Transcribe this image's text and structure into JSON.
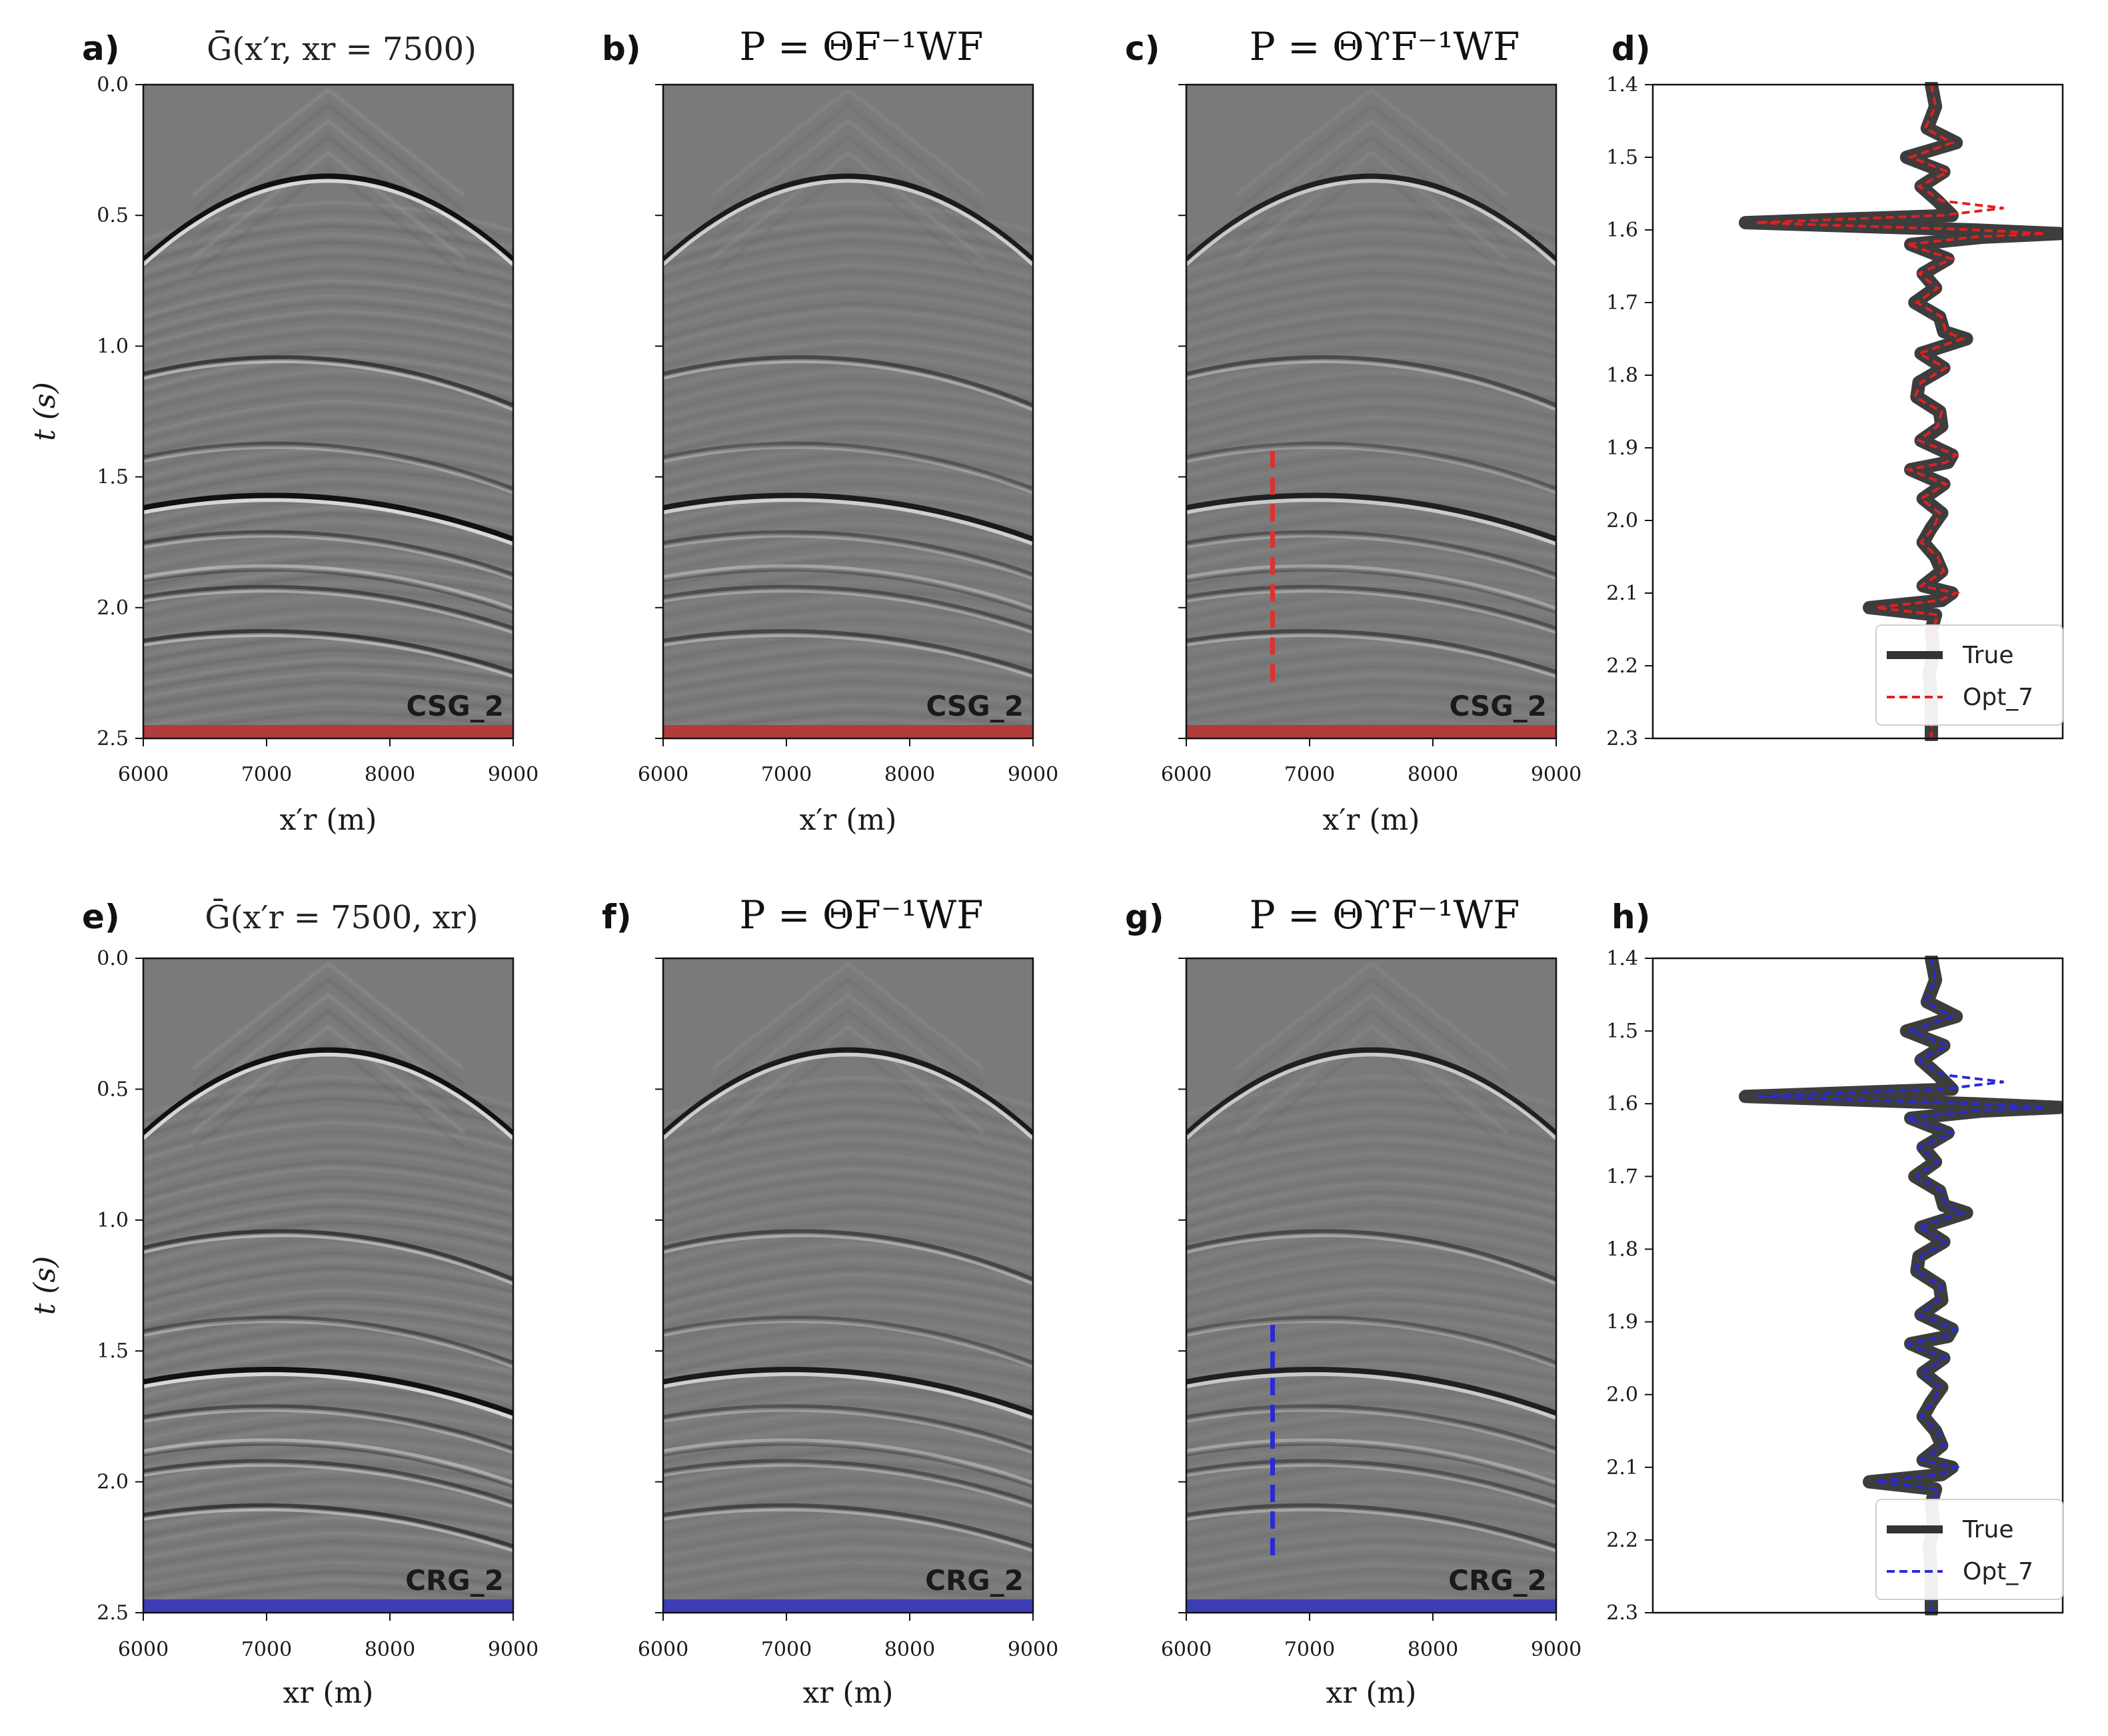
{
  "chart_data": [
    {
      "panel": "a",
      "type": "heatmap",
      "label": "a)",
      "title": "Ḡ(x′r, xr = 7500)",
      "xlabel": "x′r (m)",
      "ylabel": "t (s)",
      "badge": "CSG_2",
      "strip_color": "#b23b3b",
      "x_ticks": [
        "6000",
        "7000",
        "8000",
        "9000"
      ],
      "y_ticks": [
        "0.0",
        "0.5",
        "1.0",
        "1.5",
        "2.0",
        "2.5"
      ],
      "xlim": [
        6000,
        9000
      ],
      "ylim": [
        0.0,
        2.5
      ],
      "amplitude": 1.0
    },
    {
      "panel": "b",
      "type": "heatmap",
      "label": "b)",
      "title": "P = ΘF⁻¹WF",
      "xlabel": "x′r (m)",
      "ylabel": "",
      "badge": "CSG_2",
      "strip_color": "#b23b3b",
      "x_ticks": [
        "6000",
        "7000",
        "8000",
        "9000"
      ],
      "xlim": [
        6000,
        9000
      ],
      "ylim": [
        0.0,
        2.5
      ],
      "amplitude": 0.75
    },
    {
      "panel": "c",
      "type": "heatmap",
      "label": "c)",
      "title": "P = ΘϒF⁻¹WF",
      "xlabel": "x′r (m)",
      "ylabel": "",
      "badge": "CSG_2",
      "strip_color": "#b23b3b",
      "x_ticks": [
        "6000",
        "7000",
        "8000",
        "9000"
      ],
      "xlim": [
        6000,
        9000
      ],
      "ylim": [
        0.0,
        2.5
      ],
      "amplitude": 0.7,
      "marker": {
        "x": 6700,
        "t_start": 1.4,
        "t_end": 2.3,
        "color": "#e03030"
      }
    },
    {
      "panel": "d",
      "type": "line",
      "label": "d)",
      "y_ticks": [
        "1.4",
        "1.5",
        "1.6",
        "1.7",
        "1.8",
        "1.9",
        "2.0",
        "2.1",
        "2.2",
        "2.3"
      ],
      "ylim": [
        1.4,
        2.3
      ],
      "legend": [
        "True",
        "Opt_7"
      ],
      "legend_position": "bottom-right",
      "series_colors": [
        "#333333",
        "#e02020"
      ]
    },
    {
      "panel": "e",
      "type": "heatmap",
      "label": "e)",
      "title": "Ḡ(x′r = 7500, xr)",
      "xlabel": "xr (m)",
      "ylabel": "t (s)",
      "badge": "CRG_2",
      "strip_color": "#3d3db5",
      "x_ticks": [
        "6000",
        "7000",
        "8000",
        "9000"
      ],
      "y_ticks": [
        "0.0",
        "0.5",
        "1.0",
        "1.5",
        "2.0",
        "2.5"
      ],
      "xlim": [
        6000,
        9000
      ],
      "ylim": [
        0.0,
        2.5
      ],
      "amplitude": 1.0
    },
    {
      "panel": "f",
      "type": "heatmap",
      "label": "f)",
      "title": "P = ΘF⁻¹WF",
      "xlabel": "xr (m)",
      "ylabel": "",
      "badge": "CRG_2",
      "strip_color": "#3d3db5",
      "x_ticks": [
        "6000",
        "7000",
        "8000",
        "9000"
      ],
      "xlim": [
        6000,
        9000
      ],
      "ylim": [
        0.0,
        2.5
      ],
      "amplitude": 0.75
    },
    {
      "panel": "g",
      "type": "heatmap",
      "label": "g)",
      "title": "P = ΘϒF⁻¹WF",
      "xlabel": "xr (m)",
      "ylabel": "",
      "badge": "CRG_2",
      "strip_color": "#3d3db5",
      "x_ticks": [
        "6000",
        "7000",
        "8000",
        "9000"
      ],
      "xlim": [
        6000,
        9000
      ],
      "ylim": [
        0.0,
        2.5
      ],
      "amplitude": 0.7,
      "marker": {
        "x": 6700,
        "t_start": 1.4,
        "t_end": 2.3,
        "color": "#2a2ad6"
      }
    },
    {
      "panel": "h",
      "type": "line",
      "label": "h)",
      "y_ticks": [
        "1.4",
        "1.5",
        "1.6",
        "1.7",
        "1.8",
        "1.9",
        "2.0",
        "2.1",
        "2.2",
        "2.3"
      ],
      "ylim": [
        1.4,
        2.3
      ],
      "legend": [
        "True",
        "Opt_7"
      ],
      "legend_position": "bottom-right",
      "series_colors": [
        "#333333",
        "#2a2ad6"
      ]
    }
  ],
  "reflector_events": [
    {
      "t0": 0.35,
      "curv": 1.6,
      "polarity": -1,
      "strength": 1.0
    },
    {
      "t0": 1.05,
      "curv": 0.55,
      "polarity": -1,
      "strength": 0.45
    },
    {
      "t0": 1.38,
      "curv": 0.45,
      "polarity": -1,
      "strength": 0.25
    },
    {
      "t0": 1.58,
      "curv": 0.4,
      "polarity": -1,
      "strength": 1.0
    },
    {
      "t0": 1.72,
      "curv": 0.35,
      "polarity": -1,
      "strength": 0.3
    },
    {
      "t0": 1.85,
      "curv": 0.35,
      "polarity": 1,
      "strength": 0.25
    },
    {
      "t0": 1.93,
      "curv": 0.32,
      "polarity": -1,
      "strength": 0.35
    },
    {
      "t0": 2.1,
      "curv": 0.3,
      "polarity": -1,
      "strength": 0.45
    }
  ],
  "trace_true": [
    [
      1.4,
      0.0
    ],
    [
      1.43,
      0.02
    ],
    [
      1.46,
      -0.02
    ],
    [
      1.48,
      0.12
    ],
    [
      1.5,
      -0.12
    ],
    [
      1.52,
      0.06
    ],
    [
      1.54,
      -0.05
    ],
    [
      1.56,
      0.03
    ],
    [
      1.58,
      0.1
    ],
    [
      1.59,
      -0.9
    ],
    [
      1.6,
      0.2
    ],
    [
      1.605,
      0.62
    ],
    [
      1.61,
      0.25
    ],
    [
      1.62,
      -0.1
    ],
    [
      1.64,
      0.08
    ],
    [
      1.66,
      -0.04
    ],
    [
      1.68,
      0.02
    ],
    [
      1.7,
      -0.08
    ],
    [
      1.72,
      0.04
    ],
    [
      1.74,
      0.06
    ],
    [
      1.75,
      0.17
    ],
    [
      1.77,
      -0.05
    ],
    [
      1.79,
      0.06
    ],
    [
      1.81,
      -0.06
    ],
    [
      1.83,
      -0.07
    ],
    [
      1.85,
      0.04
    ],
    [
      1.87,
      0.05
    ],
    [
      1.89,
      -0.05
    ],
    [
      1.91,
      0.1
    ],
    [
      1.92,
      0.08
    ],
    [
      1.93,
      -0.1
    ],
    [
      1.95,
      0.06
    ],
    [
      1.97,
      -0.04
    ],
    [
      1.99,
      0.05
    ],
    [
      2.01,
      0.0
    ],
    [
      2.03,
      -0.04
    ],
    [
      2.05,
      0.02
    ],
    [
      2.07,
      0.05
    ],
    [
      2.09,
      -0.04
    ],
    [
      2.1,
      0.1
    ],
    [
      2.11,
      0.05
    ],
    [
      2.12,
      -0.3
    ],
    [
      2.13,
      0.02
    ],
    [
      2.15,
      0.0
    ],
    [
      2.18,
      0.01
    ],
    [
      2.21,
      -0.01
    ],
    [
      2.25,
      0.0
    ],
    [
      2.3,
      0.0
    ]
  ],
  "trace_opt": [
    [
      1.4,
      0.0
    ],
    [
      1.43,
      0.02
    ],
    [
      1.46,
      -0.03
    ],
    [
      1.48,
      0.1
    ],
    [
      1.5,
      -0.1
    ],
    [
      1.52,
      0.08
    ],
    [
      1.54,
      -0.06
    ],
    [
      1.56,
      0.05
    ],
    [
      1.57,
      0.35
    ],
    [
      1.58,
      0.05
    ],
    [
      1.59,
      -0.85
    ],
    [
      1.6,
      0.22
    ],
    [
      1.605,
      0.55
    ],
    [
      1.61,
      0.2
    ],
    [
      1.62,
      -0.12
    ],
    [
      1.64,
      0.1
    ],
    [
      1.66,
      -0.06
    ],
    [
      1.68,
      0.03
    ],
    [
      1.7,
      -0.07
    ],
    [
      1.72,
      0.05
    ],
    [
      1.74,
      0.07
    ],
    [
      1.75,
      0.15
    ],
    [
      1.77,
      -0.06
    ],
    [
      1.79,
      0.07
    ],
    [
      1.81,
      -0.05
    ],
    [
      1.83,
      -0.08
    ],
    [
      1.85,
      0.05
    ],
    [
      1.87,
      0.03
    ],
    [
      1.89,
      -0.06
    ],
    [
      1.91,
      0.12
    ],
    [
      1.92,
      0.07
    ],
    [
      1.93,
      -0.11
    ],
    [
      1.95,
      0.07
    ],
    [
      1.97,
      -0.05
    ],
    [
      1.99,
      0.04
    ],
    [
      2.01,
      0.01
    ],
    [
      2.03,
      -0.05
    ],
    [
      2.05,
      0.03
    ],
    [
      2.07,
      0.06
    ],
    [
      2.09,
      -0.05
    ],
    [
      2.1,
      0.12
    ],
    [
      2.11,
      0.04
    ],
    [
      2.12,
      -0.27
    ],
    [
      2.13,
      0.03
    ],
    [
      2.15,
      0.01
    ],
    [
      2.18,
      0.0
    ],
    [
      2.21,
      -0.01
    ],
    [
      2.25,
      0.0
    ],
    [
      2.3,
      0.0
    ]
  ]
}
